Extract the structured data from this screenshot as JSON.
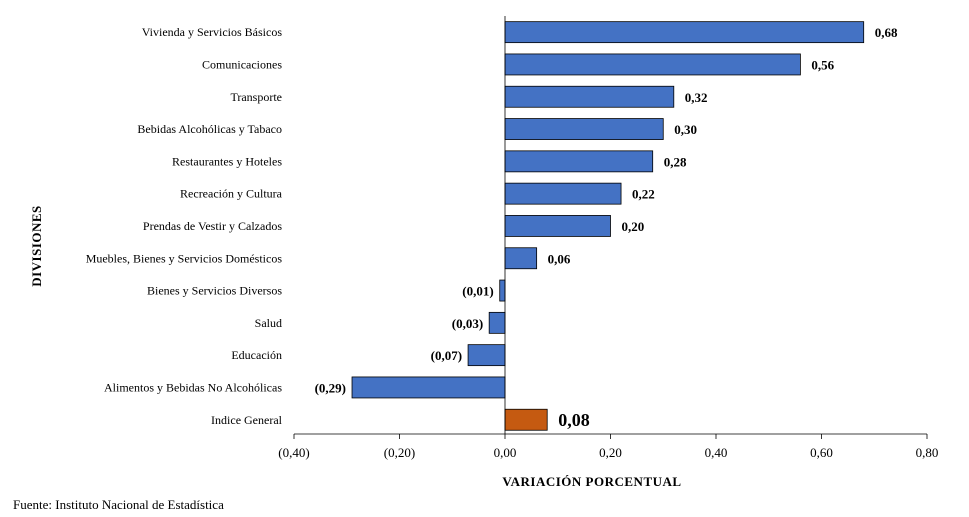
{
  "chart_data": {
    "type": "bar",
    "orientation": "horizontal",
    "ylabel": "DIVISIONES",
    "xlabel": "VARIACIÓN PORCENTUAL",
    "xlim": [
      -0.4,
      0.8
    ],
    "xticks": [
      -0.4,
      -0.2,
      0.0,
      0.2,
      0.4,
      0.6,
      0.8
    ],
    "xtick_labels": [
      "(0,40)",
      "(0,20)",
      "0,00",
      "0,20",
      "0,40",
      "0,60",
      "0,80"
    ],
    "grid": false,
    "categories": [
      "Vivienda y Servicios Básicos",
      "Comunicaciones",
      "Transporte",
      "Bebidas Alcohólicas y Tabaco",
      "Restaurantes  y Hoteles",
      "Recreación y Cultura",
      "Prendas de Vestir y Calzados",
      "Muebles, Bienes y Servicios Domésticos",
      "Bienes y Servicios Diversos",
      "Salud",
      "Educación",
      "Alimentos y Bebidas No Alcohólicas",
      "Indice General"
    ],
    "values": [
      0.68,
      0.56,
      0.32,
      0.3,
      0.28,
      0.22,
      0.2,
      0.06,
      -0.01,
      -0.03,
      -0.07,
      -0.29,
      0.08
    ],
    "data_labels": [
      "0,68",
      "0,56",
      "0,32",
      "0,30",
      "0,28",
      "0,22",
      "0,20",
      "0,06",
      "(0,01)",
      "(0,03)",
      "(0,07)",
      "(0,29)",
      "0,08"
    ],
    "colors": {
      "bar": "#4472C4",
      "highlight": "#C55A11",
      "bar_border": "#000000"
    }
  },
  "footer": {
    "source": "Fuente: Instituto Nacional de Estadística"
  }
}
